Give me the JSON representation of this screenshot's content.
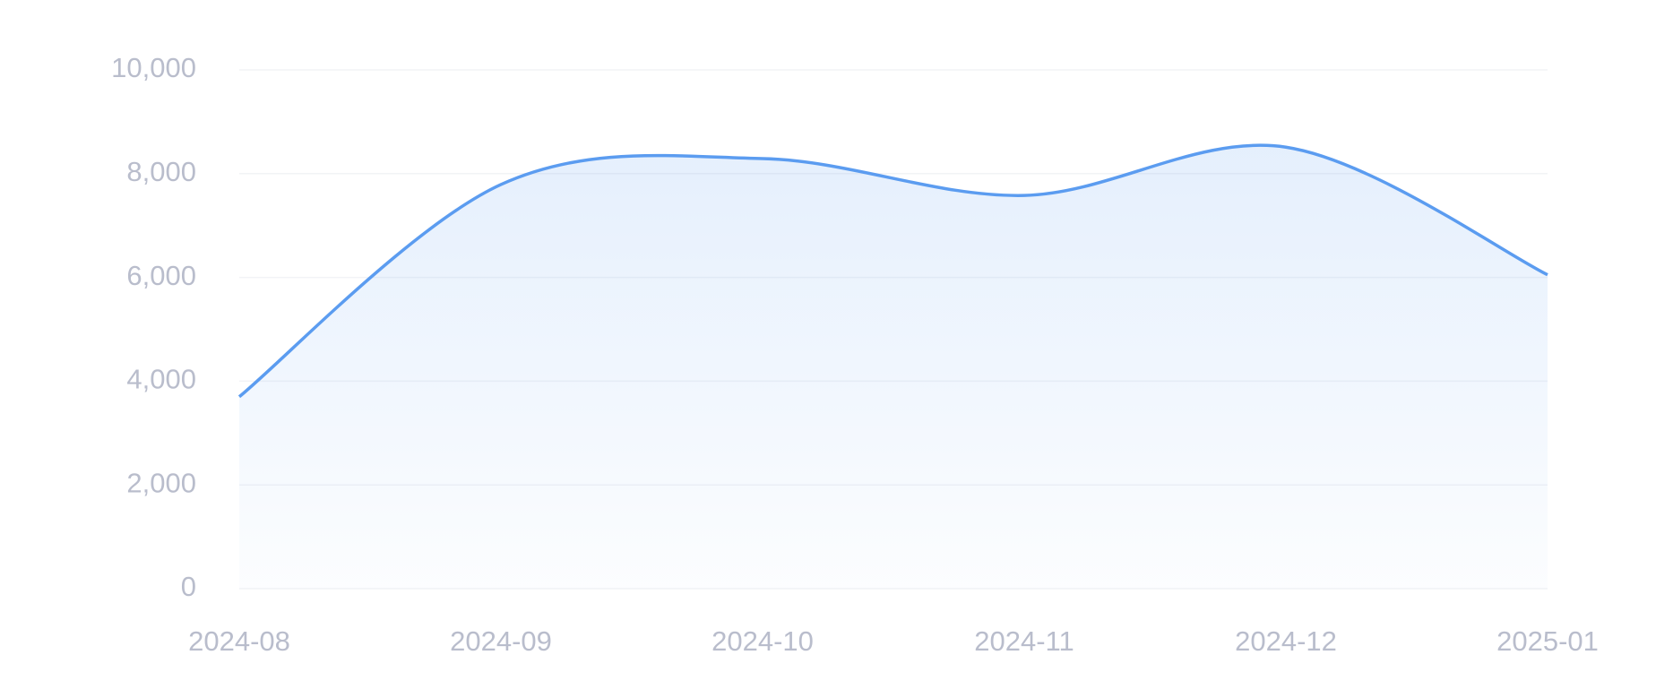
{
  "chart_data": {
    "type": "area",
    "categories": [
      "2024-08",
      "2024-09",
      "2024-10",
      "2024-11",
      "2024-12",
      "2025-01"
    ],
    "series": [
      {
        "color": "#5b9cf0",
        "values": [
          3700,
          7790,
          8290,
          7580,
          8510,
          6050
        ]
      }
    ],
    "ylim": [
      0,
      10000
    ],
    "yticks": [
      0,
      {
        "value": 2000,
        "label": "2,000"
      },
      {
        "value": 4000,
        "label": "4,000"
      },
      {
        "value": 6000,
        "label": "6,000"
      },
      {
        "value": 8000,
        "label": "8,000"
      },
      {
        "value": 10000,
        "label": "10,000"
      }
    ],
    "grid": true
  }
}
